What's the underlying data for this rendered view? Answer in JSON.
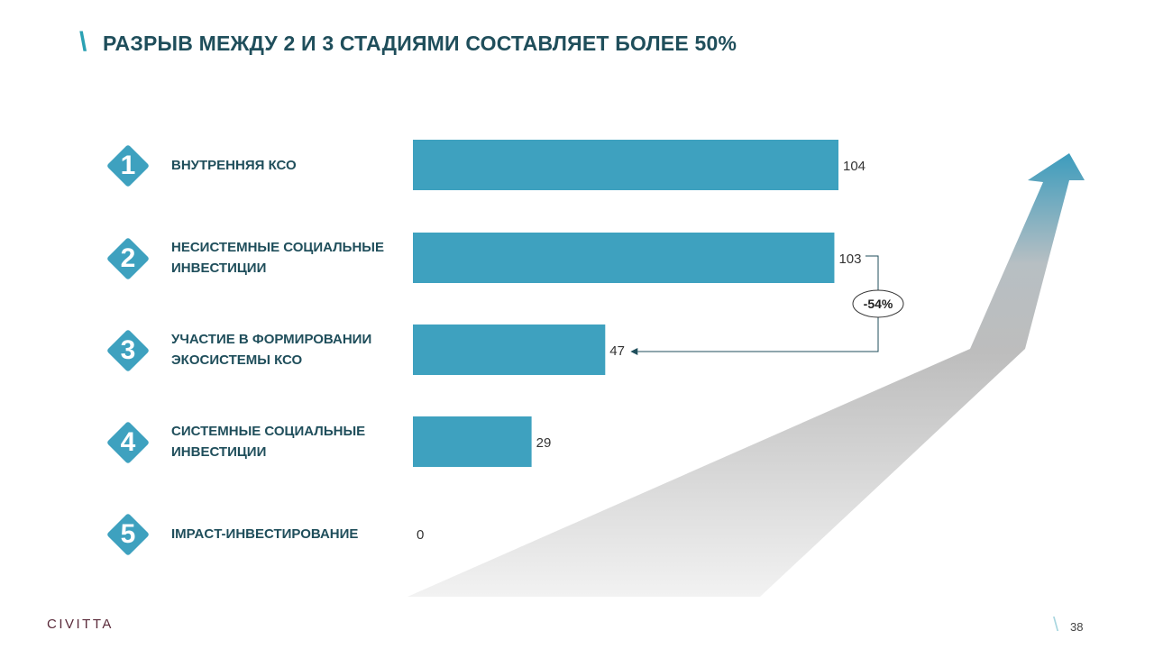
{
  "header": {
    "title": "РАЗРЫВ МЕЖДУ 2 И 3 СТАДИЯМИ СОСТАВЛЯЕТ БОЛЕЕ 50%",
    "slash": "\\"
  },
  "stages": [
    {
      "number": "1",
      "label": "ВНУТРЕННЯЯ КСО"
    },
    {
      "number": "2",
      "label": "НЕСИСТЕМНЫЕ СОЦИАЛЬНЫЕ\nИНВЕСТИЦИИ"
    },
    {
      "number": "3",
      "label": "УЧАСТИЕ В ФОРМИРОВАНИИ\nЭКОСИСТЕМЫ КСО"
    },
    {
      "number": "4",
      "label": "СИСТЕМНЫЕ СОЦИАЛЬНЫЕ\nИНВЕСТИЦИИ"
    },
    {
      "number": "5",
      "label": "IMPACT-ИНВЕСТИРОВАНИЕ"
    }
  ],
  "chart_data": {
    "type": "bar",
    "orientation": "horizontal",
    "categories": [
      "ВНУТРЕННЯЯ КСО",
      "НЕСИСТЕМНЫЕ СОЦИАЛЬНЫЕ ИНВЕСТИЦИИ",
      "УЧАСТИЕ В ФОРМИРОВАНИИ ЭКОСИСТЕМЫ КСО",
      "СИСТЕМНЫЕ СОЦИАЛЬНЫЕ ИНВЕСТИЦИИ",
      "IMPACT-ИНВЕСТИРОВАНИЕ"
    ],
    "values": [
      104,
      103,
      47,
      29,
      0
    ],
    "data_labels": [
      "104",
      "103",
      "47",
      "29",
      "0"
    ],
    "xlim": [
      0,
      104
    ],
    "grid": false,
    "legend": "none",
    "bar_color": "#3ea1bf",
    "annotation": {
      "from_index": 1,
      "to_index": 2,
      "label": "-54%"
    }
  },
  "colors": {
    "accent": "#3ea1bf",
    "title": "#1f4e5b",
    "slash": "#2aa1b3"
  },
  "footer": {
    "logo": "CIVITTA",
    "page_number": "38",
    "slash": "\\"
  }
}
